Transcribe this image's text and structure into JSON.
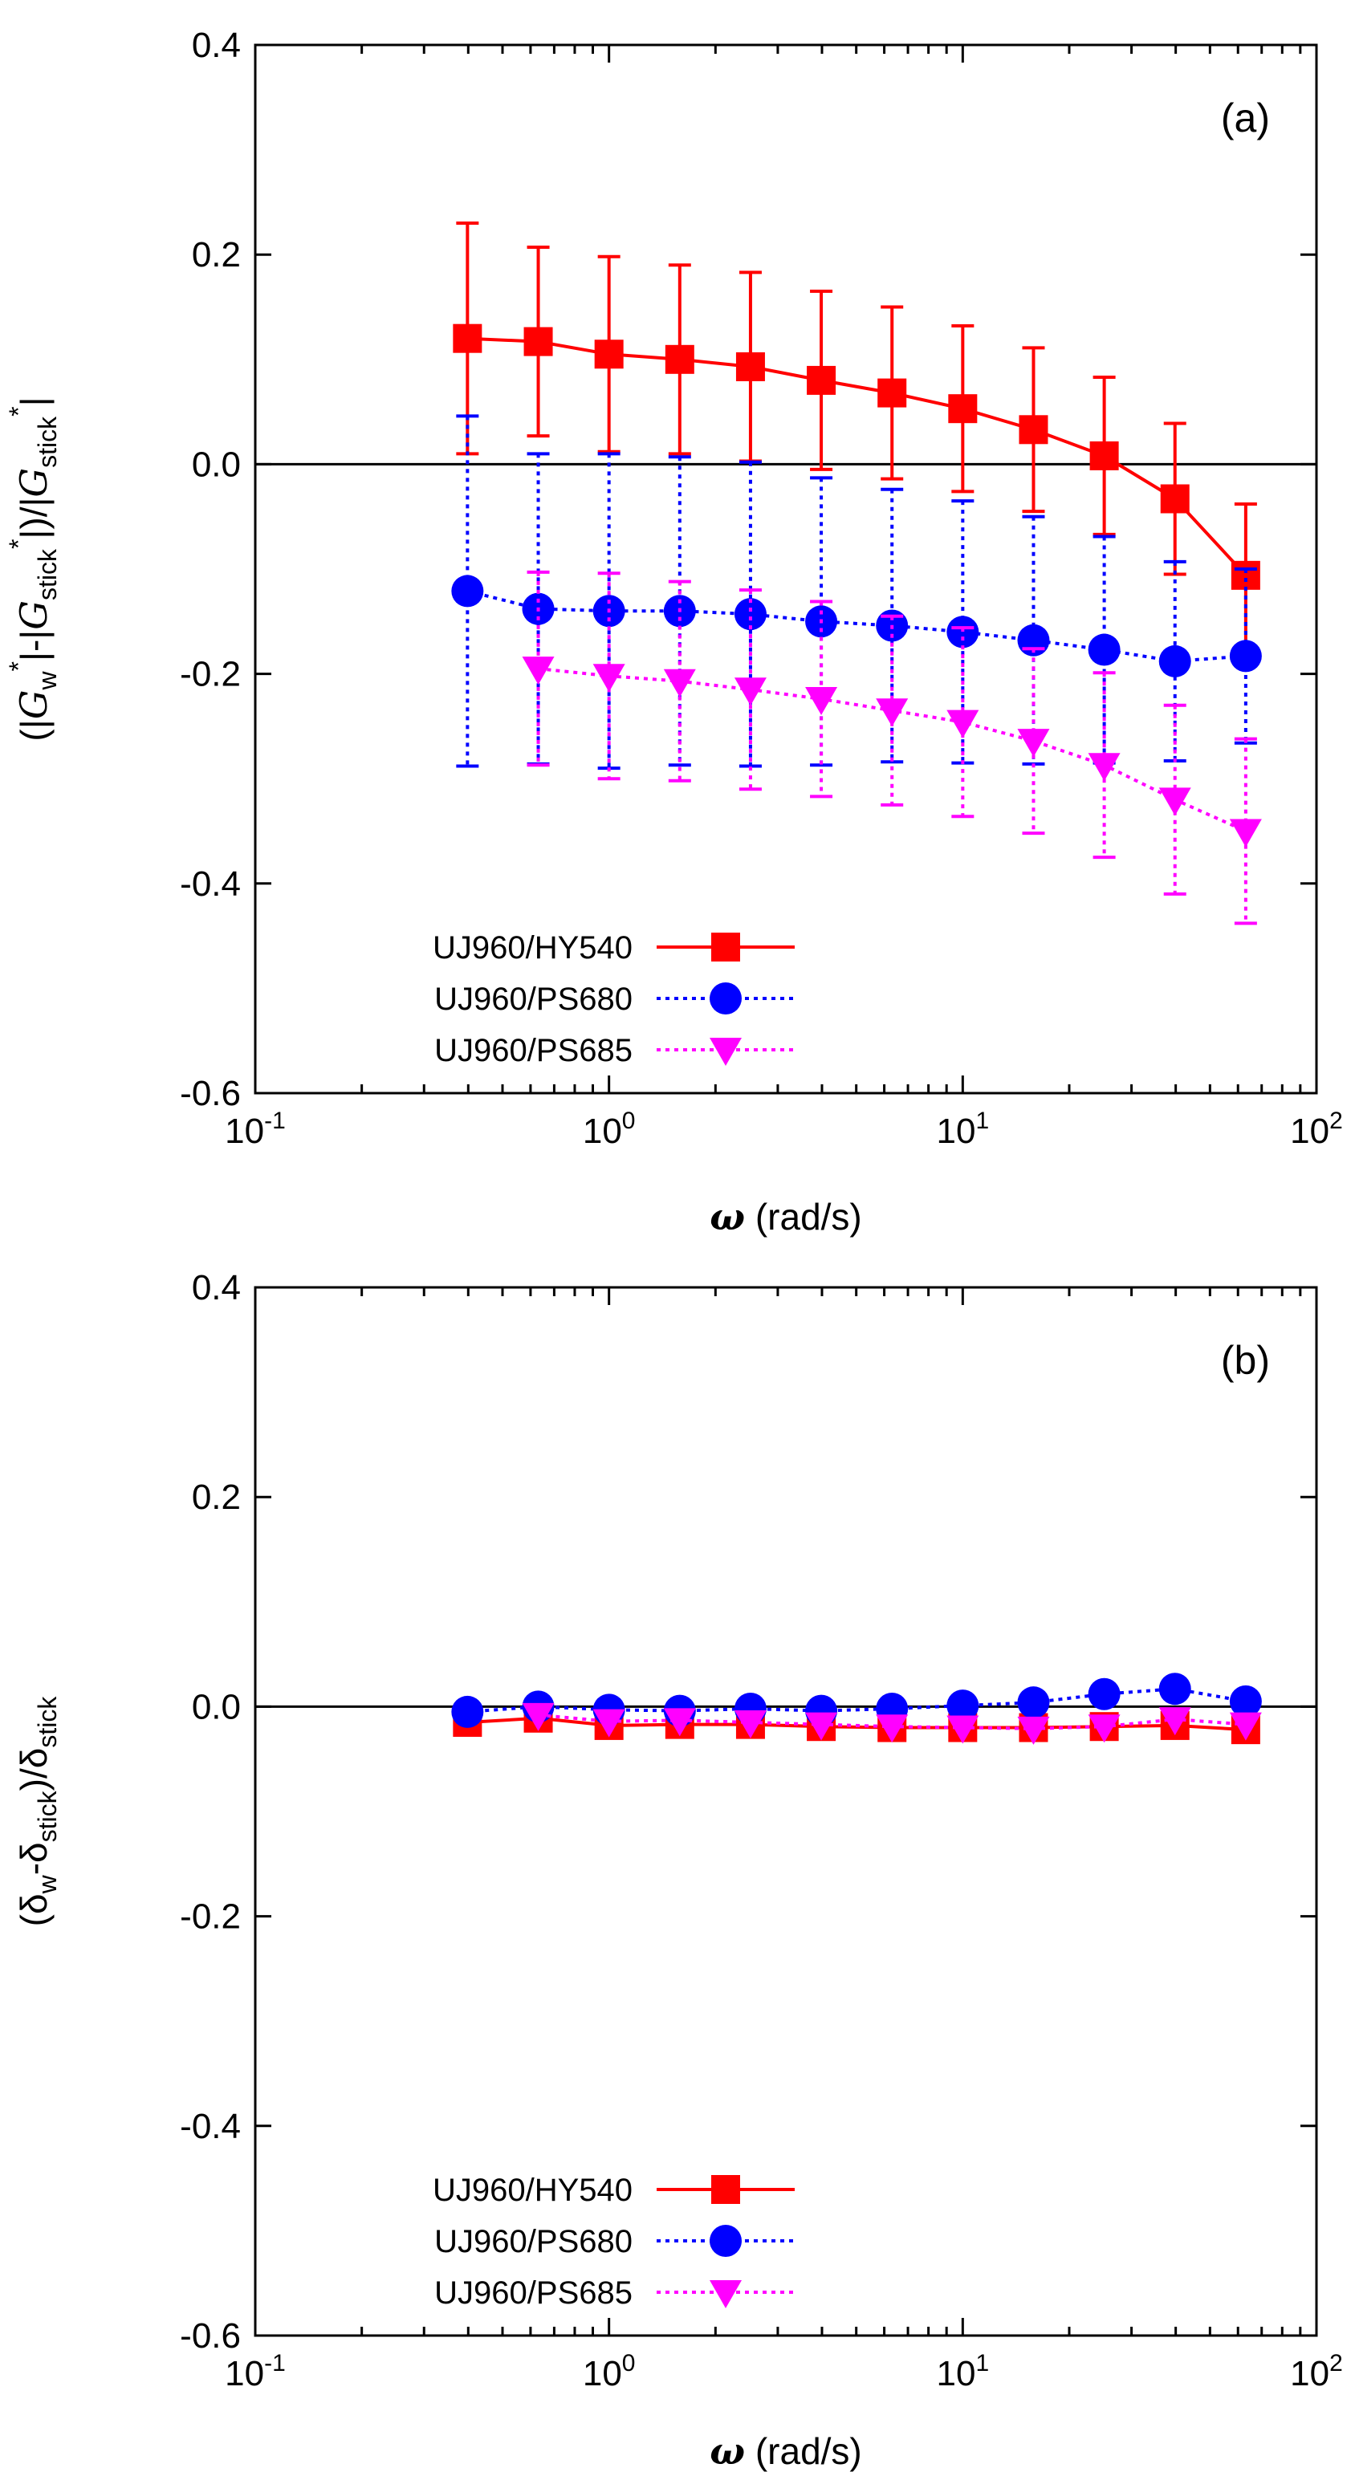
{
  "chart_data": [
    {
      "type": "line",
      "panel_label": "(a)",
      "xscale": "log",
      "xlim": [
        0.1,
        100
      ],
      "ylim": [
        -0.6,
        0.4
      ],
      "xticks": [
        {
          "base": "10",
          "exp": "-1"
        },
        {
          "base": "10",
          "exp": "0"
        },
        {
          "base": "10",
          "exp": "1"
        },
        {
          "base": "10",
          "exp": "2"
        }
      ],
      "yticks": [
        "0.4",
        "0.2",
        "0.0",
        "-0.2",
        "-0.4",
        "-0.6"
      ],
      "xlabel": {
        "symbol": "ω",
        "rest": " (rad/s)"
      },
      "ylabel": {
        "parts": [
          {
            "t": "(|"
          },
          {
            "t": "G",
            "i": true
          },
          {
            "t": "w",
            "sub": true
          },
          {
            "t": "*",
            "sup": true
          },
          {
            "t": "|-|"
          },
          {
            "t": "G",
            "i": true
          },
          {
            "t": "stick",
            "sub": true
          },
          {
            "t": "*",
            "sup": true
          },
          {
            "t": "|)/|"
          },
          {
            "t": "G",
            "i": true
          },
          {
            "t": "stick",
            "sub": true
          },
          {
            "t": "*",
            "sup": true
          },
          {
            "t": "|"
          }
        ]
      },
      "zero_line": true,
      "grid": false,
      "legend_position": "bottom-left",
      "series": [
        {
          "name": "UJ960/HY540",
          "color": "#ff0000",
          "marker": "square",
          "dash": "solid",
          "x": [
            0.398,
            0.631,
            1.0,
            1.585,
            2.512,
            3.981,
            6.31,
            10.0,
            15.85,
            25.12,
            39.81,
            63.1
          ],
          "y": [
            0.12,
            0.117,
            0.105,
            0.1,
            0.093,
            0.08,
            0.068,
            0.053,
            0.033,
            0.008,
            -0.033,
            -0.106
          ],
          "yerr": [
            0.11,
            0.09,
            0.093,
            0.09,
            0.09,
            0.085,
            0.082,
            0.079,
            0.078,
            0.075,
            0.072,
            0.068
          ]
        },
        {
          "name": "UJ960/PS680",
          "color": "#0000ff",
          "marker": "circle",
          "dash": "dotted",
          "x": [
            0.398,
            0.631,
            1.0,
            1.585,
            2.512,
            3.981,
            6.31,
            10.0,
            15.85,
            25.12,
            39.81,
            63.1
          ],
          "y": [
            -0.121,
            -0.138,
            -0.14,
            -0.14,
            -0.143,
            -0.15,
            -0.154,
            -0.16,
            -0.168,
            -0.177,
            -0.188,
            -0.183
          ],
          "yerr": [
            0.167,
            0.148,
            0.15,
            0.147,
            0.145,
            0.137,
            0.13,
            0.125,
            0.118,
            0.108,
            0.095,
            0.083
          ]
        },
        {
          "name": "UJ960/PS685",
          "color": "#ff00ff",
          "marker": "triangle-down",
          "dash": "dotted",
          "x": [
            0.631,
            1.0,
            1.585,
            2.512,
            3.981,
            6.31,
            10.0,
            15.85,
            25.12,
            39.81,
            63.1
          ],
          "y": [
            -0.195,
            -0.202,
            -0.207,
            -0.215,
            -0.224,
            -0.235,
            -0.246,
            -0.264,
            -0.287,
            -0.32,
            -0.35
          ],
          "yerr": [
            0.092,
            0.098,
            0.095,
            0.095,
            0.093,
            0.09,
            0.09,
            0.088,
            0.088,
            0.09,
            0.088
          ]
        }
      ]
    },
    {
      "type": "line",
      "panel_label": "(b)",
      "xscale": "log",
      "xlim": [
        0.1,
        100
      ],
      "ylim": [
        -0.6,
        0.4
      ],
      "xticks": [
        {
          "base": "10",
          "exp": "-1"
        },
        {
          "base": "10",
          "exp": "0"
        },
        {
          "base": "10",
          "exp": "1"
        },
        {
          "base": "10",
          "exp": "2"
        }
      ],
      "yticks": [
        "0.4",
        "0.2",
        "0.0",
        "-0.2",
        "-0.4",
        "-0.6"
      ],
      "xlabel": {
        "symbol": "ω",
        "rest": " (rad/s)"
      },
      "ylabel": {
        "parts": [
          {
            "t": "(δ"
          },
          {
            "t": "w",
            "sub": true
          },
          {
            "t": "-δ"
          },
          {
            "t": "stick",
            "sub": true
          },
          {
            "t": ")/δ"
          },
          {
            "t": "stick",
            "sub": true
          }
        ]
      },
      "zero_line": true,
      "grid": false,
      "legend_position": "bottom-left",
      "series": [
        {
          "name": "UJ960/HY540",
          "color": "#ff0000",
          "marker": "square",
          "dash": "solid",
          "x": [
            0.398,
            0.631,
            1.0,
            1.585,
            2.512,
            3.981,
            6.31,
            10.0,
            15.85,
            25.12,
            39.81,
            63.1
          ],
          "y": [
            -0.015,
            -0.011,
            -0.018,
            -0.017,
            -0.017,
            -0.019,
            -0.02,
            -0.02,
            -0.02,
            -0.019,
            -0.018,
            -0.022
          ]
        },
        {
          "name": "UJ960/PS680",
          "color": "#0000ff",
          "marker": "circle",
          "dash": "dotted",
          "x": [
            0.398,
            0.631,
            1.0,
            1.585,
            2.512,
            3.981,
            6.31,
            10.0,
            15.85,
            25.12,
            39.81,
            63.1
          ],
          "y": [
            -0.005,
            0.0,
            -0.003,
            -0.004,
            -0.002,
            -0.004,
            -0.002,
            0.001,
            0.004,
            0.012,
            0.017,
            0.005
          ]
        },
        {
          "name": "UJ960/PS685",
          "color": "#ff00ff",
          "marker": "triangle-down",
          "dash": "dotted",
          "x": [
            0.631,
            1.0,
            1.585,
            2.512,
            3.981,
            6.31,
            10.0,
            15.85,
            25.12,
            39.81,
            63.1
          ],
          "y": [
            -0.008,
            -0.014,
            -0.013,
            -0.015,
            -0.017,
            -0.019,
            -0.02,
            -0.021,
            -0.019,
            -0.012,
            -0.017
          ]
        }
      ]
    }
  ]
}
